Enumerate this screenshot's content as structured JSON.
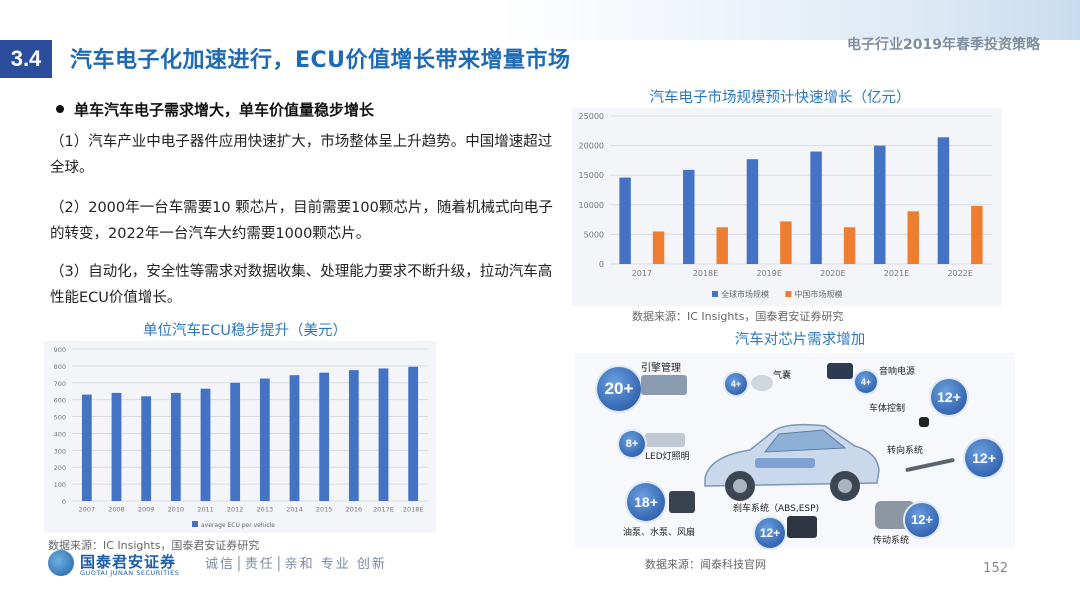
{
  "header": {
    "section_number": "3.4",
    "title": "汽车电子化加速进行，ECU价值增长带来增量市场",
    "report_name": "电子行业2019年春季投资策略"
  },
  "content": {
    "bullet_heading": "单车汽车电子需求增大，单车价值量稳步增长",
    "paragraphs": [
      "（1）汽车产业中电子器件应用快速扩大，市场整体呈上升趋势。中国增速超过全球。",
      "（2）2000年一台车需要10 颗芯片，目前需要100颗芯片，随着机械式向电子的转变，2022年一台汽车大约需要1000颗芯片。",
      "（3）自动化，安全性等需求对数据收集、处理能力要求不断升级，拉动汽车高性能ECU价值增长。"
    ]
  },
  "colors": {
    "accent": "#2b4d9c",
    "title_blue": "#1f6ab5",
    "global_bar": "#4472c4",
    "china_bar": "#ed7d31",
    "ecu_bar": "#4472c4"
  },
  "chart_data": [
    {
      "type": "bar",
      "title": "汽车电子市场规模预计快速增长（亿元）",
      "categories": [
        "2017",
        "2018E",
        "2019E",
        "2020E",
        "2021E",
        "2022E"
      ],
      "series": [
        {
          "name": "全球市场规模",
          "values": [
            14600,
            15900,
            17700,
            19000,
            20000,
            21400
          ]
        },
        {
          "name": "中国市场规模",
          "values": [
            5500,
            6200,
            7200,
            6200,
            8900,
            9800
          ]
        }
      ],
      "ylim": [
        0,
        25000
      ],
      "yticks": [
        "0",
        "5000",
        "10000",
        "15000",
        "20000",
        "25000"
      ],
      "grid": true,
      "legend": "bottom",
      "source": "数据来源：IC Insights，国泰君安证券研究"
    },
    {
      "type": "bar",
      "title": "单位汽车ECU稳步提升（美元）",
      "categories": [
        "2007",
        "2008",
        "2009",
        "2010",
        "2011",
        "2012",
        "2013",
        "2014",
        "2015",
        "2016",
        "2017E",
        "2018E"
      ],
      "series": [
        {
          "name": "average ECU per vehicle",
          "values": [
            630,
            640,
            620,
            640,
            665,
            700,
            725,
            745,
            760,
            775,
            785,
            795
          ]
        }
      ],
      "ylim": [
        0,
        900
      ],
      "yticks": [
        "0",
        "100",
        "200",
        "300",
        "400",
        "500",
        "600",
        "700",
        "800",
        "900"
      ],
      "grid": true,
      "legend": "bottom",
      "source": "数据来源：IC Insights，国泰君安证券研究"
    }
  ],
  "diagram": {
    "title": "汽车对芯片需求增加",
    "source": "数据来源：闻泰科技官网",
    "badges": [
      {
        "count": "20+",
        "label": "引擎管理"
      },
      {
        "count": "4+",
        "label": "气囊"
      },
      {
        "count": "4+",
        "label": "音响电源"
      },
      {
        "count": "12+",
        "label": "车体控制"
      },
      {
        "count": "8+",
        "label": "LED灯照明"
      },
      {
        "count": "12+",
        "label": "转向系统"
      },
      {
        "count": "18+",
        "label": "油泵、水泵、风扇"
      },
      {
        "count": "12+",
        "label": "刹车系统（ABS,ESP)"
      },
      {
        "count": "12+",
        "label": "传动系统"
      }
    ]
  },
  "footer": {
    "logo_cn": "国泰君安证券",
    "logo_en": "GUOTAI JUNAN SECURITIES",
    "slogan": "诚信│责任│亲和 专业 创新",
    "page_number": "152"
  }
}
